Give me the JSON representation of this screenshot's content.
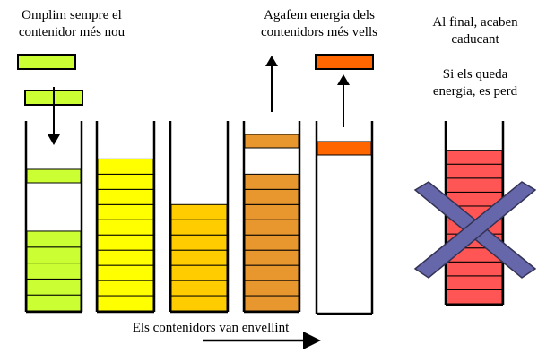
{
  "labels": {
    "fill_newest": [
      "Omplim sempre el",
      "contenidor més nou"
    ],
    "take_oldest": [
      "Agafem energia dels",
      "contenidors més vells"
    ],
    "expire": [
      "Al final, acaben",
      "caducant"
    ],
    "lost": [
      "Si els queda",
      "energia, es perd"
    ],
    "aging": "Els contenidors van envellint"
  },
  "colors": {
    "lime": "#ccff33",
    "yellow": "#ffff00",
    "gold": "#ffcc00",
    "orange_dark": "#e8962e",
    "orange_red": "#ff6600",
    "red": "#ff5555",
    "cross": "#6666aa"
  },
  "containers": [
    {
      "name": "container-newest",
      "color": "lime",
      "top_block": "lime",
      "fill_level": 0.42
    },
    {
      "name": "container-2",
      "color": "yellow",
      "fill_level": 0.8
    },
    {
      "name": "container-3",
      "color": "gold",
      "fill_level": 0.56
    },
    {
      "name": "container-4",
      "color": "orange_dark",
      "top_block": "orange_dark",
      "fill_level": 0.72
    },
    {
      "name": "container-oldest",
      "color": "orange_red",
      "top_block": "orange_red",
      "fill_level": 0
    },
    {
      "name": "container-expired",
      "color": "red",
      "fill_level": 0.84
    }
  ],
  "icons": [
    "down-arrow-icon",
    "up-arrow-icon",
    "right-arrow-icon",
    "cross-icon"
  ]
}
